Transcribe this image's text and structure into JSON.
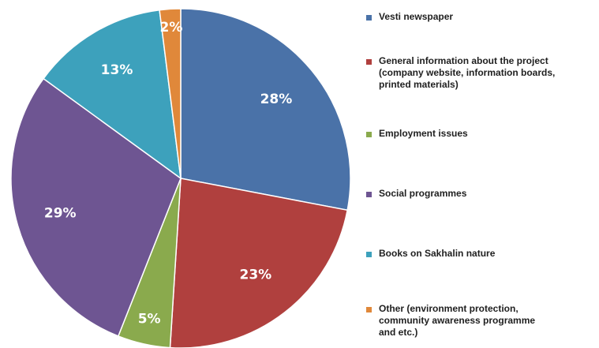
{
  "chart_data": {
    "type": "pie",
    "categories": [
      "Vesti newspaper",
      "General information about the project\n(company website, information boards,\nprinted materials)",
      "Employment issues",
      "Social programmes",
      "Books on Sakhalin nature",
      "Other (environment protection,\ncommunity awareness programme\nand etc.)"
    ],
    "values": [
      28,
      23,
      5,
      29,
      13,
      2
    ],
    "value_labels": [
      "28%",
      "23%",
      "5%",
      "29%",
      "13%",
      "2%"
    ],
    "colors": [
      "#4a72a8",
      "#b0403e",
      "#8aaa4d",
      "#6e5592",
      "#3da1bc",
      "#e0883a"
    ],
    "legend_placement": "right",
    "start_angle": "12 o'clock",
    "direction": "clockwise"
  }
}
